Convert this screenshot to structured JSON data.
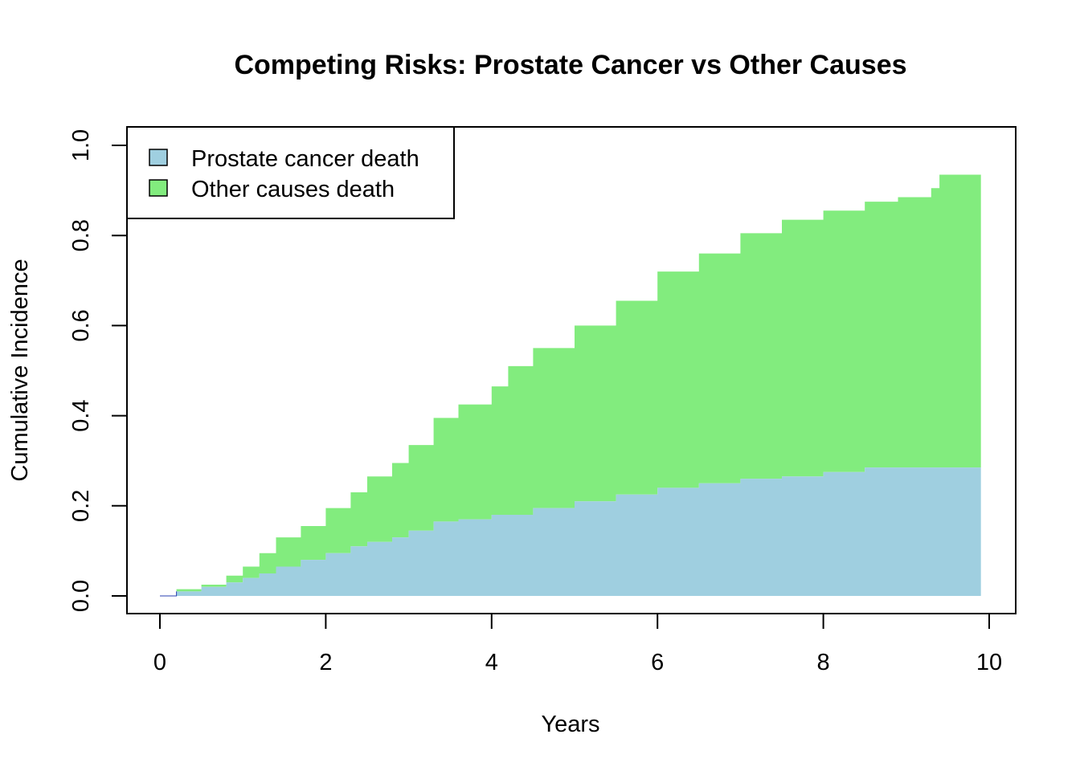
{
  "chart_data": {
    "type": "area",
    "title": "Competing Risks: Prostate Cancer vs Other Causes",
    "xlabel": "Years",
    "ylabel": "Cumulative Incidence",
    "xlim": [
      0,
      10
    ],
    "ylim": [
      0,
      1
    ],
    "x_ticks": [
      "0",
      "2",
      "4",
      "6",
      "8",
      "10"
    ],
    "y_ticks": [
      "0.0",
      "0.2",
      "0.4",
      "0.6",
      "0.8",
      "1.0"
    ],
    "legend_position": "top-left",
    "stacked": true,
    "series": [
      {
        "name": "Prostate cancer death",
        "color": "#9fcfe0",
        "x": [
          0,
          0.2,
          0.5,
          0.8,
          1.0,
          1.2,
          1.4,
          1.7,
          2.0,
          2.3,
          2.5,
          2.8,
          3.0,
          3.3,
          3.6,
          4.0,
          4.5,
          5.0,
          5.5,
          6.0,
          6.5,
          7.0,
          7.5,
          8.0,
          8.5,
          9.0,
          9.5,
          9.9
        ],
        "values": [
          0,
          0.01,
          0.02,
          0.03,
          0.04,
          0.05,
          0.065,
          0.08,
          0.095,
          0.11,
          0.12,
          0.13,
          0.145,
          0.165,
          0.17,
          0.18,
          0.195,
          0.21,
          0.225,
          0.24,
          0.25,
          0.26,
          0.265,
          0.275,
          0.285,
          0.285,
          0.285,
          0.285
        ]
      },
      {
        "name": "Other causes death",
        "color": "#82ec7e",
        "x": [
          0,
          0.2,
          0.5,
          0.8,
          1.0,
          1.2,
          1.4,
          1.7,
          2.0,
          2.3,
          2.5,
          2.8,
          3.0,
          3.3,
          3.6,
          4.0,
          4.2,
          4.5,
          5.0,
          5.5,
          6.0,
          6.5,
          7.0,
          7.5,
          8.0,
          8.5,
          8.9,
          9.3,
          9.4,
          9.9
        ],
        "values": [
          0,
          0.005,
          0.005,
          0.015,
          0.025,
          0.045,
          0.065,
          0.075,
          0.1,
          0.12,
          0.145,
          0.165,
          0.19,
          0.23,
          0.255,
          0.285,
          0.33,
          0.355,
          0.39,
          0.43,
          0.48,
          0.51,
          0.545,
          0.57,
          0.58,
          0.59,
          0.6,
          0.62,
          0.65,
          0.65
        ]
      }
    ]
  }
}
